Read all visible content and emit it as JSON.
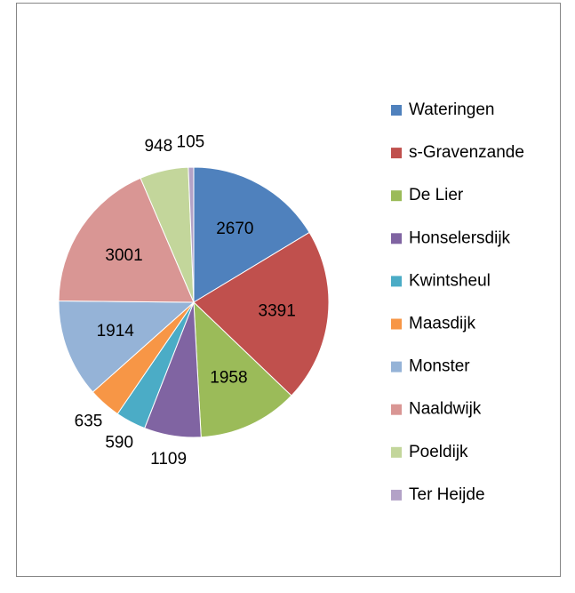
{
  "chart_data": {
    "type": "pie",
    "categories": [
      "Wateringen",
      "s-Gravenzande",
      "De Lier",
      "Honselersdijk",
      "Kwintsheul",
      "Maasdijk",
      "Monster",
      "Naaldwijk",
      "Poeldijk",
      "Ter Heijde"
    ],
    "values": [
      2670,
      3391,
      1958,
      1109,
      590,
      635,
      1914,
      3001,
      948,
      105
    ],
    "colors": [
      "#4f81bd",
      "#c0504d",
      "#9bbb59",
      "#8064a2",
      "#4bacc6",
      "#f79646",
      "#95b3d7",
      "#d99694",
      "#c3d69b",
      "#b3a2c7"
    ],
    "legend": "right"
  }
}
